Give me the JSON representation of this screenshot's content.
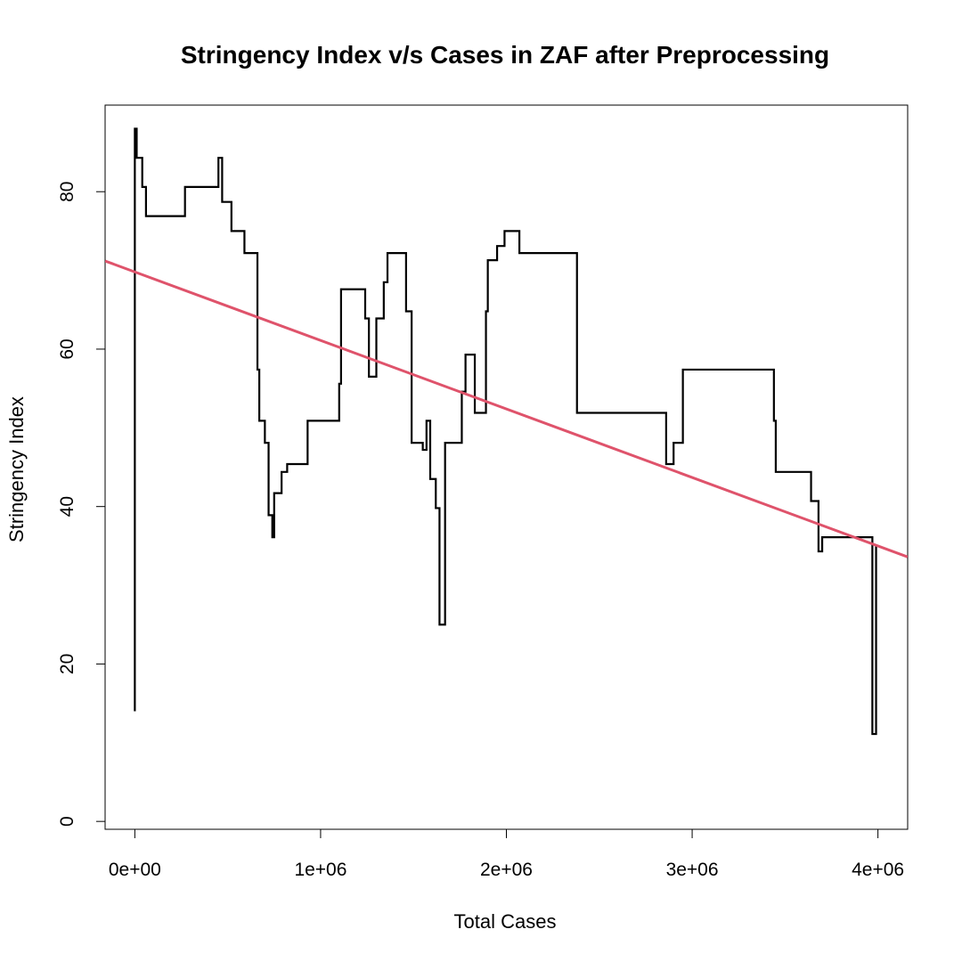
{
  "chart_data": {
    "type": "line",
    "title": "Stringency Index v/s Cases in ZAF after Preprocessing",
    "xlabel": "Total Cases",
    "ylabel": "Stringency Index",
    "xlim": [
      -160000,
      4160000
    ],
    "ylim": [
      -1,
      91
    ],
    "x_ticks": [
      0,
      1000000,
      2000000,
      3000000,
      4000000
    ],
    "x_tick_labels": [
      "0e+00",
      "1e+06",
      "2e+06",
      "3e+06",
      "4e+06"
    ],
    "y_ticks": [
      0,
      20,
      40,
      60,
      80
    ],
    "y_tick_labels": [
      "0",
      "20",
      "40",
      "60",
      "80"
    ],
    "grid": false,
    "series": [
      {
        "color": "#000000",
        "style": "step",
        "points": [
          [
            0,
            14
          ],
          [
            0,
            88
          ],
          [
            10000,
            84.3
          ],
          [
            40000,
            80.6
          ],
          [
            60000,
            76.9
          ],
          [
            270000,
            80.6
          ],
          [
            450000,
            84.3
          ],
          [
            470000,
            78.7
          ],
          [
            520000,
            75
          ],
          [
            590000,
            72.2
          ],
          [
            660000,
            57.4
          ],
          [
            670000,
            50.9
          ],
          [
            700000,
            48.1
          ],
          [
            720000,
            38.9
          ],
          [
            740000,
            36.1
          ],
          [
            750000,
            41.7
          ],
          [
            790000,
            44.4
          ],
          [
            820000,
            45.4
          ],
          [
            930000,
            50.9
          ],
          [
            1100000,
            55.6
          ],
          [
            1110000,
            67.6
          ],
          [
            1240000,
            63.9
          ],
          [
            1260000,
            56.5
          ],
          [
            1300000,
            63.9
          ],
          [
            1340000,
            68.5
          ],
          [
            1360000,
            72.2
          ],
          [
            1460000,
            64.8
          ],
          [
            1490000,
            48.1
          ],
          [
            1550000,
            47.2
          ],
          [
            1570000,
            50.9
          ],
          [
            1590000,
            43.5
          ],
          [
            1620000,
            39.8
          ],
          [
            1640000,
            25
          ],
          [
            1670000,
            48.1
          ],
          [
            1760000,
            54.6
          ],
          [
            1780000,
            59.3
          ],
          [
            1830000,
            51.9
          ],
          [
            1890000,
            64.8
          ],
          [
            1900000,
            71.3
          ],
          [
            1950000,
            73.1
          ],
          [
            1990000,
            75
          ],
          [
            2070000,
            72.2
          ],
          [
            2380000,
            51.9
          ],
          [
            2860000,
            45.4
          ],
          [
            2900000,
            48.1
          ],
          [
            2950000,
            57.4
          ],
          [
            3440000,
            50.9
          ],
          [
            3450000,
            44.4
          ],
          [
            3640000,
            40.7
          ],
          [
            3680000,
            34.3
          ],
          [
            3700000,
            36.1
          ],
          [
            3970000,
            35.2
          ],
          [
            3970000,
            11.1
          ],
          [
            3990000,
            35.2
          ]
        ]
      },
      {
        "color": "#DF536B",
        "style": "line",
        "points": [
          [
            -160000,
            71.2
          ],
          [
            4160000,
            33.6
          ]
        ]
      }
    ]
  }
}
